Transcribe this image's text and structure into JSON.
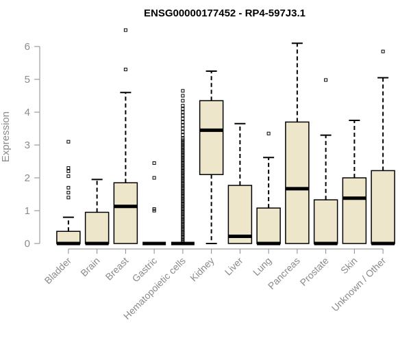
{
  "chart_data": {
    "type": "box",
    "title": "ENSG00000177452 - RP4-597J3.1",
    "xlabel": "",
    "ylabel": "Expression",
    "ylim": [
      0,
      6.6
    ],
    "yticks": [
      0,
      1,
      2,
      3,
      4,
      5,
      6
    ],
    "grid": false,
    "box_fill": "#ede6cb",
    "line_color": "#000000",
    "axis_color": "#8a8a8a",
    "categories": [
      "Bladder",
      "Brain",
      "Breast",
      "Gastric",
      "Hematopoietic cells",
      "Kidney",
      "Liver",
      "Lung",
      "Pancreas",
      "Prostate",
      "Skin",
      "Unknown / Other"
    ],
    "boxes": [
      {
        "whislo": 0,
        "q1": 0,
        "med": 0,
        "q3": 0.37,
        "whishi": 0.8,
        "outliers": [
          1.4,
          1.55,
          1.7,
          2.05,
          2.2,
          2.3,
          3.1
        ]
      },
      {
        "whislo": 0,
        "q1": 0,
        "med": 0,
        "q3": 0.95,
        "whishi": 1.95,
        "outliers": []
      },
      {
        "whislo": 0,
        "q1": 0,
        "med": 1.13,
        "q3": 1.85,
        "whishi": 4.6,
        "outliers": [
          5.3,
          6.5
        ]
      },
      {
        "whislo": 0,
        "q1": 0,
        "med": 0,
        "q3": 0,
        "whishi": 0,
        "outliers": [
          1.0,
          1.05,
          2.0,
          2.45
        ]
      },
      {
        "whislo": 0,
        "q1": 0,
        "med": 0,
        "q3": 0,
        "whishi": 0,
        "outliers": [
          0.05,
          0.1,
          0.15,
          0.2,
          0.25,
          0.3,
          0.35,
          0.4,
          0.45,
          0.5,
          0.55,
          0.6,
          0.65,
          0.7,
          0.75,
          0.8,
          0.85,
          0.9,
          0.95,
          1.0,
          1.05,
          1.1,
          1.15,
          1.2,
          1.25,
          1.3,
          1.35,
          1.4,
          1.45,
          1.5,
          1.55,
          1.6,
          1.65,
          1.7,
          1.75,
          1.8,
          1.85,
          1.9,
          1.95,
          2.0,
          2.05,
          2.1,
          2.15,
          2.2,
          2.25,
          2.3,
          2.35,
          2.4,
          2.45,
          2.5,
          2.55,
          2.6,
          2.65,
          2.7,
          2.75,
          2.8,
          2.85,
          2.9,
          2.95,
          3.0,
          3.05,
          3.1,
          3.15,
          3.2,
          3.3,
          3.4,
          3.5,
          3.6,
          3.7,
          3.8,
          3.9,
          4.0,
          4.1,
          4.2,
          4.35,
          4.5,
          4.65
        ]
      },
      {
        "whislo": 0,
        "q1": 2.1,
        "med": 3.45,
        "q3": 4.35,
        "whishi": 5.25,
        "outliers": []
      },
      {
        "whislo": 0,
        "q1": 0,
        "med": 0.22,
        "q3": 1.77,
        "whishi": 3.65,
        "outliers": []
      },
      {
        "whislo": 0,
        "q1": 0,
        "med": 0,
        "q3": 1.08,
        "whishi": 2.62,
        "outliers": [
          3.35
        ]
      },
      {
        "whislo": 0,
        "q1": 0,
        "med": 1.67,
        "q3": 3.7,
        "whishi": 6.1,
        "outliers": []
      },
      {
        "whislo": 0,
        "q1": 0,
        "med": 0,
        "q3": 1.33,
        "whishi": 3.3,
        "outliers": [
          4.98
        ]
      },
      {
        "whislo": 0,
        "q1": 0,
        "med": 1.38,
        "q3": 2.0,
        "whishi": 3.75,
        "outliers": []
      },
      {
        "whislo": 0,
        "q1": 0,
        "med": 0,
        "q3": 2.22,
        "whishi": 5.05,
        "outliers": [
          5.85
        ]
      }
    ]
  }
}
